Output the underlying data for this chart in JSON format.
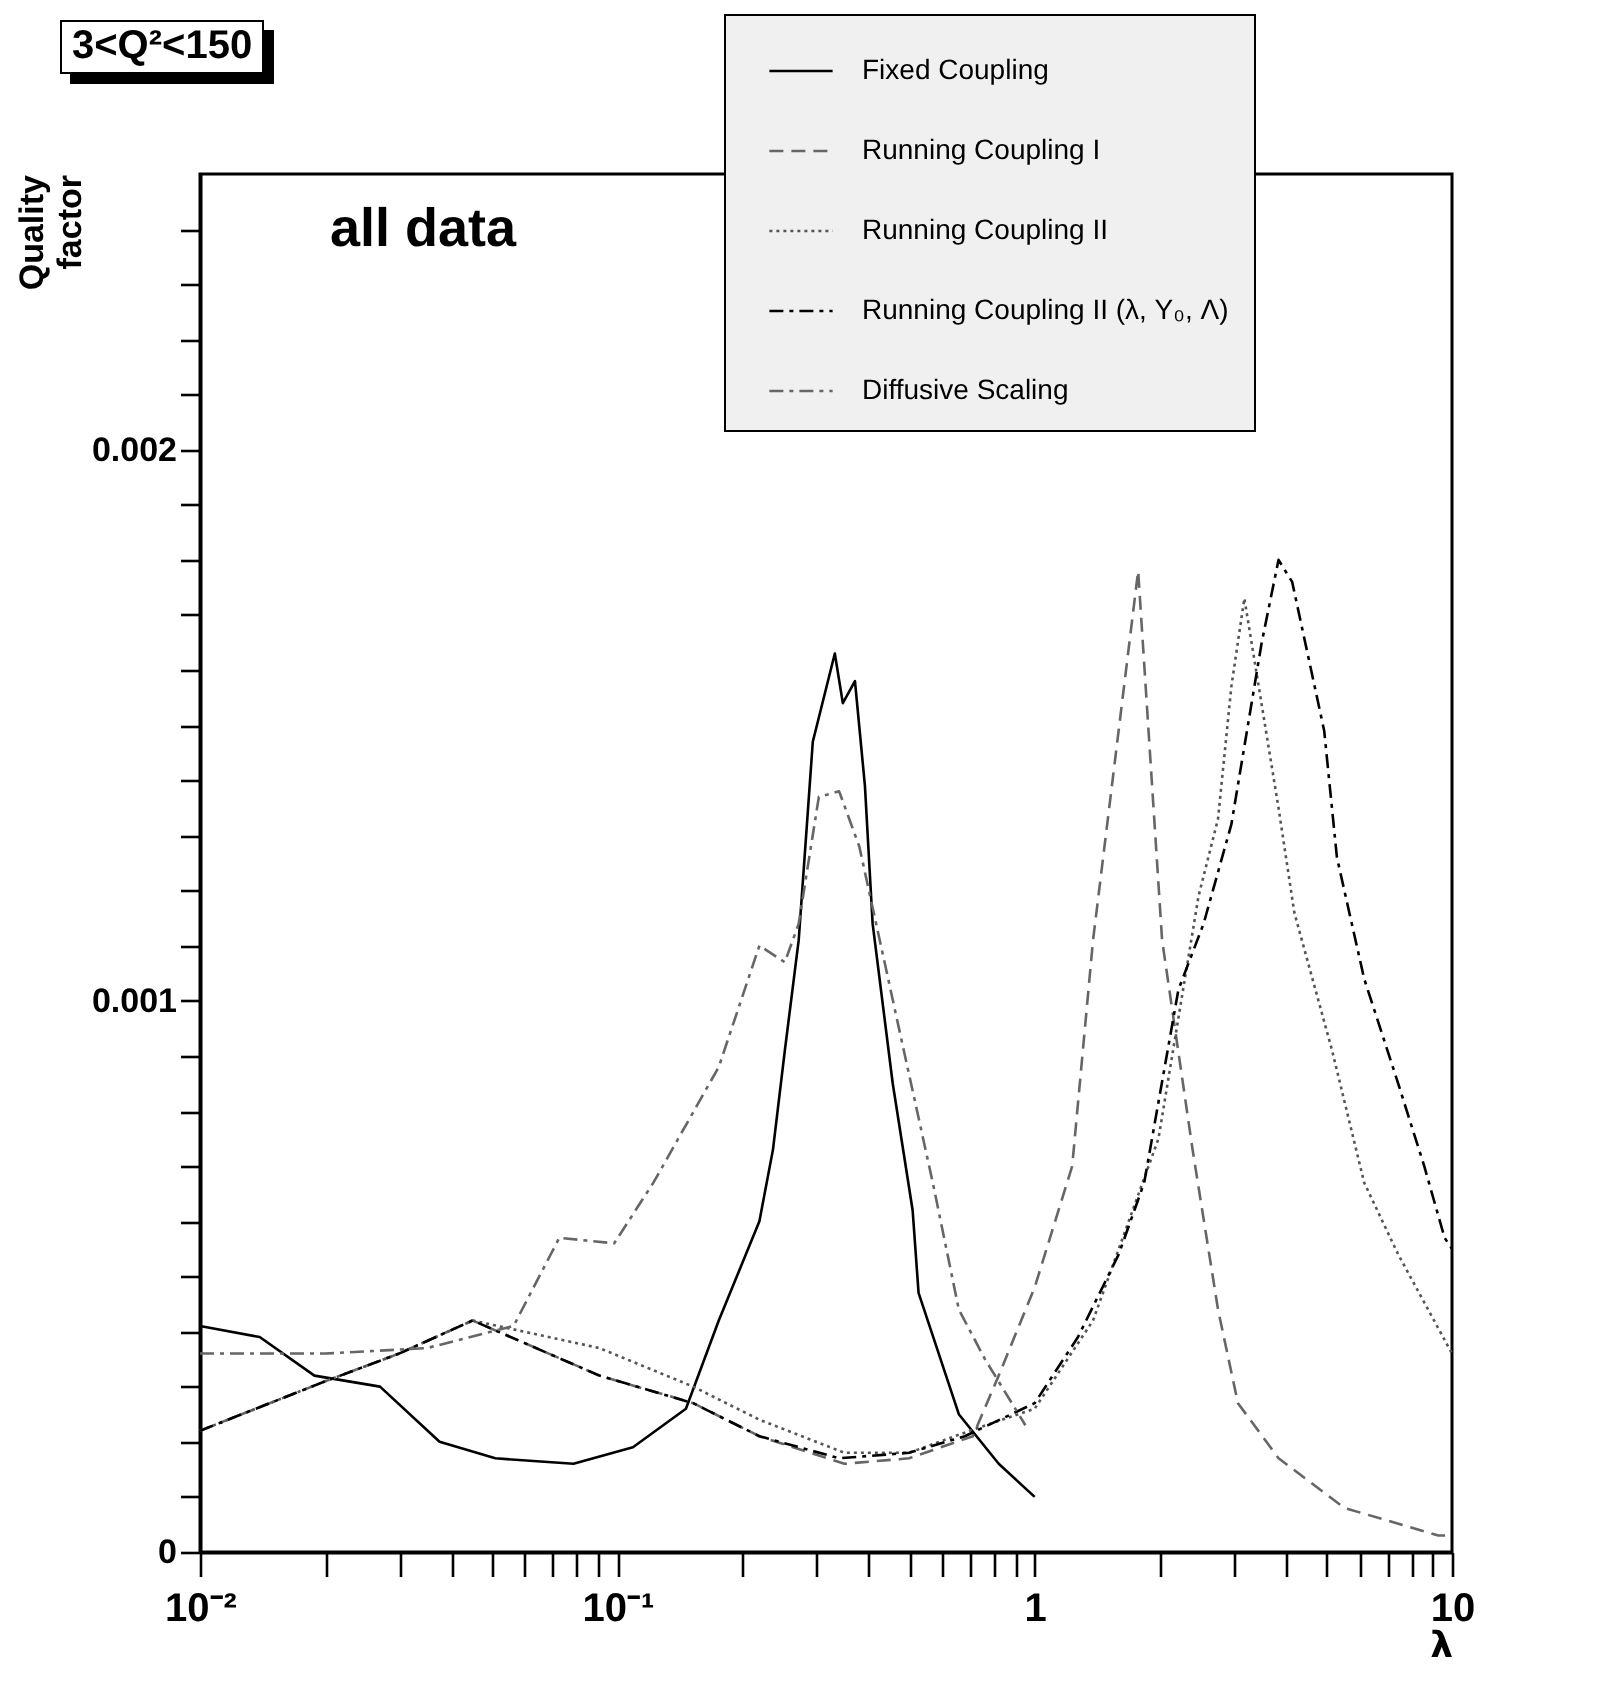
{
  "chart_data": {
    "type": "line",
    "title": "3<Q²<150",
    "xlabel": "λ",
    "ylabel": "Quality factor",
    "annotations": [
      "all data"
    ],
    "log": "x",
    "grid": false,
    "legend": "top right",
    "marker": "none",
    "xlim": [
      0.01,
      10
    ],
    "xticks": [
      {
        "value": 0.01,
        "label": "10⁻²"
      },
      {
        "value": 0.02,
        "label": null
      },
      {
        "value": 0.03,
        "label": null
      },
      {
        "value": 0.04,
        "label": null
      },
      {
        "value": 0.05,
        "label": null
      },
      {
        "value": 0.06,
        "label": null
      },
      {
        "value": 0.07,
        "label": null
      },
      {
        "value": 0.08,
        "label": null
      },
      {
        "value": 0.09,
        "label": null
      },
      {
        "value": 0.1,
        "label": "10⁻¹"
      },
      {
        "value": 0.2,
        "label": null
      },
      {
        "value": 0.3,
        "label": null
      },
      {
        "value": 0.4,
        "label": null
      },
      {
        "value": 0.5,
        "label": null
      },
      {
        "value": 0.6,
        "label": null
      },
      {
        "value": 0.7,
        "label": null
      },
      {
        "value": 0.8,
        "label": null
      },
      {
        "value": 0.9,
        "label": null
      },
      1,
      {
        "value": 2,
        "label": null
      },
      {
        "value": 3,
        "label": null
      },
      {
        "value": 4,
        "label": null
      },
      {
        "value": 5,
        "label": null
      },
      {
        "value": 6,
        "label": null
      },
      {
        "value": 7,
        "label": null
      },
      {
        "value": 8,
        "label": null
      },
      {
        "value": 9,
        "label": null
      },
      10
    ],
    "ylim": [
      0,
      0.0025
    ],
    "yticks": [
      0,
      {
        "value": 0.0001,
        "label": null
      },
      {
        "value": 0.0002,
        "label": null
      },
      {
        "value": 0.0003,
        "label": null
      },
      {
        "value": 0.0004,
        "label": null
      },
      {
        "value": 0.0005,
        "label": null
      },
      {
        "value": 0.0006,
        "label": null
      },
      {
        "value": 0.0007,
        "label": null
      },
      {
        "value": 0.0008,
        "label": null
      },
      {
        "value": 0.0009,
        "label": null
      },
      0.001,
      {
        "value": 0.0011,
        "label": null
      },
      {
        "value": 0.0012,
        "label": null
      },
      {
        "value": 0.0013,
        "label": null
      },
      {
        "value": 0.0014,
        "label": null
      },
      {
        "value": 0.0015,
        "label": null
      },
      {
        "value": 0.0016,
        "label": null
      },
      {
        "value": 0.0017,
        "label": null
      },
      {
        "value": 0.0018,
        "label": null
      },
      {
        "value": 0.0019,
        "label": null
      },
      0.002,
      {
        "value": 0.0021,
        "label": null
      },
      {
        "value": 0.0022,
        "label": null
      },
      {
        "value": 0.0023,
        "label": null
      },
      {
        "value": 0.0024,
        "label": null
      }
    ],
    "series": [
      {
        "name": "Fixed Coupling",
        "color": "#000000",
        "line_style": "solid",
        "x": [
          0.01,
          0.0139,
          0.0188,
          0.027,
          0.0375,
          0.051,
          0.0785,
          0.109,
          0.146,
          0.175,
          0.219,
          0.236,
          0.252,
          0.272,
          0.294,
          0.332,
          0.347,
          0.371,
          0.392,
          0.409,
          0.457,
          0.51,
          0.527,
          0.658,
          0.82,
          1.0
        ],
        "values": [
          0.00041,
          0.00039,
          0.00032,
          0.0003,
          0.0002,
          0.00017,
          0.00016,
          0.00019,
          0.00026,
          0.00042,
          0.0006,
          0.00073,
          0.00091,
          0.00111,
          0.00147,
          0.00163,
          0.00154,
          0.00158,
          0.00139,
          0.00114,
          0.00085,
          0.00062,
          0.00047,
          0.00025,
          0.00016,
          0.0001
        ]
      },
      {
        "name": "Running Coupling I",
        "color": "#666666",
        "line_style": "dashed",
        "x": [
          0.01,
          0.02,
          0.03,
          0.045,
          0.0906,
          0.152,
          0.219,
          0.35,
          0.5,
          0.711,
          0.82,
          1.0,
          1.23,
          1.38,
          1.77,
          2.02,
          2.39,
          2.75,
          3.07,
          3.84,
          5.52,
          9.27,
          10
        ],
        "values": [
          0.00022,
          0.00031,
          0.00036,
          0.00042,
          0.00032,
          0.00027,
          0.00021,
          0.00016,
          0.00017,
          0.00021,
          0.00032,
          0.00048,
          0.0007,
          0.00111,
          0.00178,
          0.00111,
          0.00073,
          0.00044,
          0.00027,
          0.00017,
          8e-05,
          3e-05,
          3e-05
        ]
      },
      {
        "name": "Running Coupling II",
        "color": "#555555",
        "line_style": "dotted",
        "x": [
          0.01,
          0.02,
          0.03,
          0.045,
          0.0906,
          0.152,
          0.219,
          0.35,
          0.5,
          0.7,
          1.0,
          1.38,
          1.98,
          2.47,
          2.75,
          2.96,
          3.18,
          3.84,
          4.19,
          5.16,
          6.16,
          7.43,
          10
        ],
        "values": [
          0.00022,
          0.00031,
          0.00036,
          0.00042,
          0.00037,
          0.0003,
          0.00024,
          0.00018,
          0.00018,
          0.00022,
          0.00026,
          0.00042,
          0.00075,
          0.00119,
          0.00133,
          0.00157,
          0.00173,
          0.00135,
          0.00116,
          0.00091,
          0.00067,
          0.00054,
          0.00036
        ]
      },
      {
        "name": "Running Coupling II (λ, Y₀, Λ)",
        "color": "#000000",
        "line_style": "dashdot",
        "x": [
          0.01,
          0.02,
          0.03,
          0.045,
          0.0906,
          0.152,
          0.219,
          0.34,
          0.5,
          0.68,
          1.0,
          1.27,
          1.59,
          1.83,
          2.21,
          2.54,
          2.96,
          3.5,
          3.84,
          4.14,
          4.94,
          5.3,
          6.16,
          7.43,
          8.58,
          9.6,
          10
        ],
        "values": [
          0.00022,
          0.00031,
          0.00036,
          0.00042,
          0.00032,
          0.00027,
          0.00021,
          0.00017,
          0.00018,
          0.00021,
          0.00027,
          0.00039,
          0.00054,
          0.00067,
          0.00102,
          0.00114,
          0.00132,
          0.00165,
          0.0018,
          0.00176,
          0.00149,
          0.00126,
          0.00104,
          0.00085,
          0.0007,
          0.00057,
          0.00055
        ]
      },
      {
        "name": "Diffusive Scaling",
        "color": "#666666",
        "line_style": "dashdot",
        "x": [
          0.01,
          0.02,
          0.035,
          0.0564,
          0.0726,
          0.0983,
          0.122,
          0.175,
          0.219,
          0.252,
          0.272,
          0.304,
          0.34,
          0.38,
          0.473,
          0.57,
          0.658,
          0.76,
          0.95
        ],
        "values": [
          0.00036,
          0.00036,
          0.00037,
          0.00041,
          0.00057,
          0.00056,
          0.00067,
          0.00088,
          0.0011,
          0.00107,
          0.00114,
          0.00137,
          0.00138,
          0.00128,
          0.00095,
          0.00067,
          0.00044,
          0.00035,
          0.00023
        ]
      }
    ]
  }
}
